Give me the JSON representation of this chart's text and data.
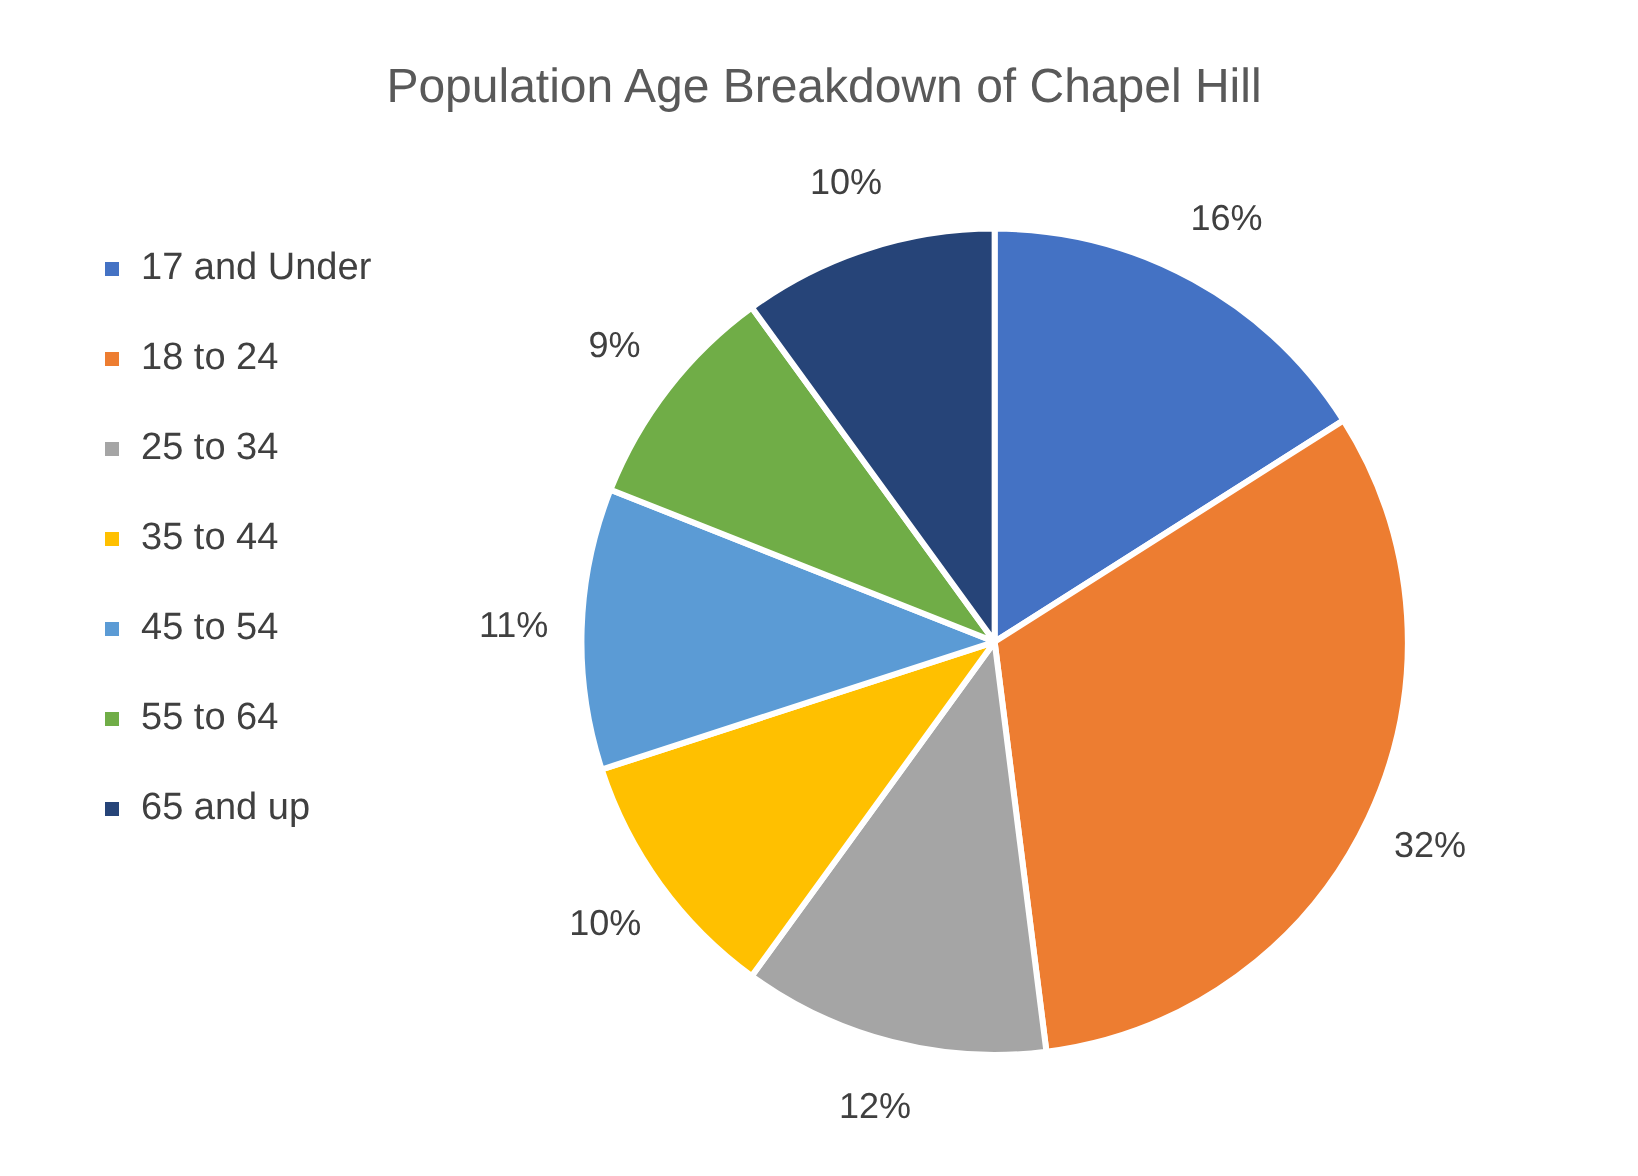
{
  "chart_data": {
    "type": "pie",
    "title": "Population Age Breakdown of Chapel Hill",
    "categories": [
      "17 and Under",
      "18 to 24",
      "25 to 34",
      "35 to 44",
      "45 to 54",
      "55 to 64",
      "65 and up"
    ],
    "values": [
      16,
      32,
      12,
      10,
      11,
      9,
      10
    ],
    "colors": [
      "#4472c4",
      "#ed7d31",
      "#a5a5a5",
      "#ffc000",
      "#5b9bd5",
      "#70ad47",
      "#264478"
    ],
    "value_labels": [
      "16%",
      "32%",
      "12%",
      "10%",
      "11%",
      "9%",
      "10%"
    ],
    "legend": "left"
  }
}
